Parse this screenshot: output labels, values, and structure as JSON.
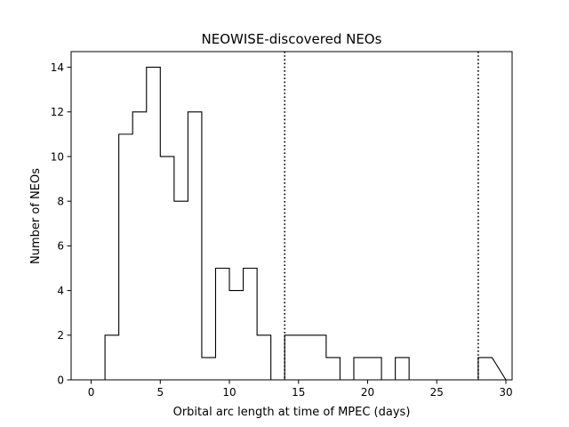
{
  "chart_data": {
    "type": "step-histogram",
    "title": "NEOWISE-discovered NEOs",
    "xlabel": "Orbital arc length at time of MPEC (days)",
    "ylabel": "Number of NEOs",
    "xlim": [
      -1.45,
      30.45
    ],
    "ylim": [
      0,
      14.7
    ],
    "xticks": [
      0,
      5,
      10,
      15,
      20,
      25,
      30
    ],
    "yticks": [
      0,
      2,
      4,
      6,
      8,
      10,
      12,
      14
    ],
    "bin_edges": [
      0,
      1,
      2,
      3,
      4,
      5,
      6,
      7,
      8,
      9,
      10,
      11,
      12,
      13,
      14,
      15,
      16,
      17,
      18,
      19,
      20,
      21,
      22,
      23,
      24,
      25,
      26,
      27,
      28,
      29
    ],
    "counts": [
      0,
      2,
      11,
      12,
      14,
      10,
      8,
      12,
      1,
      5,
      4,
      5,
      2,
      0,
      2,
      2,
      2,
      1,
      0,
      1,
      1,
      0,
      1,
      0,
      0,
      0,
      0,
      0,
      1
    ],
    "vlines": [
      {
        "x": 14,
        "style": "dotted"
      },
      {
        "x": 28,
        "style": "dotted"
      }
    ],
    "line_color": "#000000",
    "grid": false
  }
}
